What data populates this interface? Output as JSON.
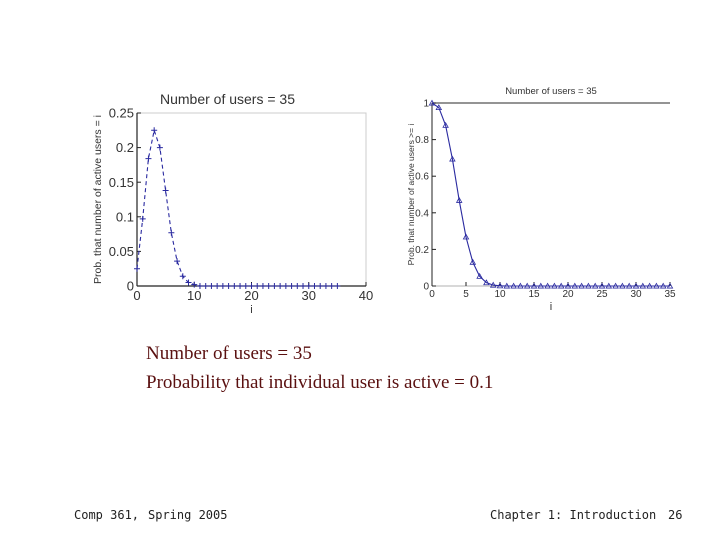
{
  "slide": {
    "caption_line1": "Number of users = 35",
    "caption_line2": "Probability that individual user is active = 0.1",
    "footer_course": "Comp 361,",
    "footer_term": "Spring 2005",
    "footer_chapter": "Chapter 1: Introduction",
    "footer_page": "26"
  },
  "colors": {
    "series": "#2a2aa0",
    "caption": "#5a1010",
    "axis": "#222222"
  },
  "chart_data": [
    {
      "type": "line",
      "title": "Number of users = 35",
      "xlabel": "i",
      "ylabel": "Prob. that number of active users = i",
      "xlim": [
        0,
        40
      ],
      "ylim": [
        0,
        0.25
      ],
      "xticks": [
        0,
        10,
        20,
        30,
        40
      ],
      "yticks": [
        0,
        0.05,
        0.1,
        0.15,
        0.2,
        0.25
      ],
      "ytick_labels": [
        "0",
        "0.05",
        "0.1",
        "0.15",
        "0.2",
        "0.25"
      ],
      "line_style": "dashed",
      "marker": "+",
      "series": [
        {
          "x": [
            0,
            1,
            2,
            3,
            4,
            5,
            6,
            7,
            8,
            9,
            10,
            11,
            12,
            13,
            14,
            15,
            16,
            17,
            18,
            19,
            20,
            21,
            22,
            23,
            24,
            25,
            26,
            27,
            28,
            29,
            30,
            31,
            32,
            33,
            34,
            35
          ],
          "values": [
            0.025,
            0.097,
            0.184,
            0.225,
            0.2,
            0.138,
            0.077,
            0.036,
            0.014,
            0.005,
            0.002,
            0,
            0,
            0,
            0,
            0,
            0,
            0,
            0,
            0,
            0,
            0,
            0,
            0,
            0,
            0,
            0,
            0,
            0,
            0,
            0,
            0,
            0,
            0,
            0,
            0
          ]
        }
      ]
    },
    {
      "type": "line",
      "title": "Number of users = 35",
      "xlabel": "i",
      "ylabel": "Prob. that number of active users >= i",
      "xlim": [
        0,
        35
      ],
      "ylim": [
        0,
        1
      ],
      "xticks": [
        0,
        5,
        10,
        15,
        20,
        25,
        30,
        35
      ],
      "yticks": [
        0,
        0.2,
        0.4,
        0.6,
        0.8,
        1
      ],
      "ytick_labels": [
        "0",
        "0.2",
        "0.4",
        "0.6",
        "0.8",
        "1"
      ],
      "line_style": "solid",
      "marker": "triangle",
      "series": [
        {
          "x": [
            0,
            1,
            2,
            3,
            4,
            5,
            6,
            7,
            8,
            9,
            10,
            11,
            12,
            13,
            14,
            15,
            16,
            17,
            18,
            19,
            20,
            21,
            22,
            23,
            24,
            25,
            26,
            27,
            28,
            29,
            30,
            31,
            32,
            33,
            34,
            35
          ],
          "values": [
            1.0,
            0.975,
            0.878,
            0.694,
            0.468,
            0.268,
            0.13,
            0.053,
            0.018,
            0.005,
            0.001,
            0,
            0,
            0,
            0,
            0,
            0,
            0,
            0,
            0,
            0,
            0,
            0,
            0,
            0,
            0,
            0,
            0,
            0,
            0,
            0,
            0,
            0,
            0,
            0,
            0
          ]
        }
      ]
    }
  ]
}
